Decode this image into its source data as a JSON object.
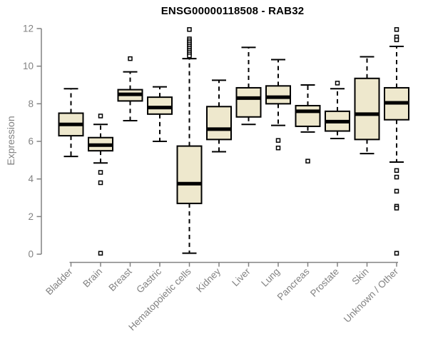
{
  "chart_data": {
    "type": "boxplot",
    "title": "ENSG00000118508 - RAB32",
    "ylabel": "Expression",
    "xlabel": "",
    "ylim": [
      0,
      12
    ],
    "yticks": [
      0,
      2,
      4,
      6,
      8,
      10,
      12
    ],
    "grid": false,
    "legend": false,
    "categories": [
      "Bladder",
      "Brain",
      "Breast",
      "Gastric",
      "Hematopoietic cells",
      "Kidney",
      "Liver",
      "Lung",
      "Pancreas",
      "Prostate",
      "Skin",
      "Unknown / Other"
    ],
    "series": [
      {
        "name": "Bladder",
        "low": 5.2,
        "q1": 6.3,
        "median": 6.9,
        "q3": 7.5,
        "high": 8.8,
        "outliers": []
      },
      {
        "name": "Brain",
        "low": 4.85,
        "q1": 5.5,
        "median": 5.8,
        "q3": 6.2,
        "high": 6.9,
        "outliers": [
          7.35,
          4.35,
          3.8,
          0.05
        ]
      },
      {
        "name": "Breast",
        "low": 7.1,
        "q1": 8.15,
        "median": 8.5,
        "q3": 8.75,
        "high": 9.7,
        "outliers": [
          10.4
        ]
      },
      {
        "name": "Gastric",
        "low": 6.0,
        "q1": 7.45,
        "median": 7.8,
        "q3": 8.35,
        "high": 8.9,
        "outliers": []
      },
      {
        "name": "Hematopoietic cells",
        "low": 0.05,
        "q1": 2.7,
        "median": 3.75,
        "q3": 5.75,
        "high": 10.4,
        "outliers": [
          11.95,
          11.45,
          11.35,
          11.25,
          11.15,
          11.05,
          10.95,
          10.85,
          10.75,
          10.65,
          10.55
        ]
      },
      {
        "name": "Kidney",
        "low": 5.45,
        "q1": 6.1,
        "median": 6.65,
        "q3": 7.85,
        "high": 9.25,
        "outliers": []
      },
      {
        "name": "Liver",
        "low": 6.9,
        "q1": 7.3,
        "median": 8.3,
        "q3": 8.85,
        "high": 11.0,
        "outliers": []
      },
      {
        "name": "Lung",
        "low": 6.85,
        "q1": 8.0,
        "median": 8.35,
        "q3": 8.95,
        "high": 10.35,
        "outliers": [
          6.05,
          5.65
        ]
      },
      {
        "name": "Pancreas",
        "low": 6.5,
        "q1": 6.8,
        "median": 7.6,
        "q3": 7.9,
        "high": 9.0,
        "outliers": [
          4.95
        ]
      },
      {
        "name": "Prostate",
        "low": 6.15,
        "q1": 6.55,
        "median": 7.05,
        "q3": 7.6,
        "high": 8.8,
        "outliers": [
          9.1
        ]
      },
      {
        "name": "Skin",
        "low": 5.35,
        "q1": 6.1,
        "median": 7.45,
        "q3": 9.35,
        "high": 10.5,
        "outliers": []
      },
      {
        "name": "Unknown / Other",
        "low": 4.9,
        "q1": 7.15,
        "median": 8.05,
        "q3": 8.85,
        "high": 11.05,
        "outliers": [
          11.95,
          11.55,
          11.4,
          4.45,
          4.1,
          3.35,
          2.55,
          2.45,
          0.05
        ]
      }
    ],
    "colors": {
      "box_fill": "#EEE8CD",
      "box_border": "#000000",
      "median": "#000000",
      "axis": "#828282",
      "title": "#000000",
      "background": "#ffffff"
    }
  }
}
